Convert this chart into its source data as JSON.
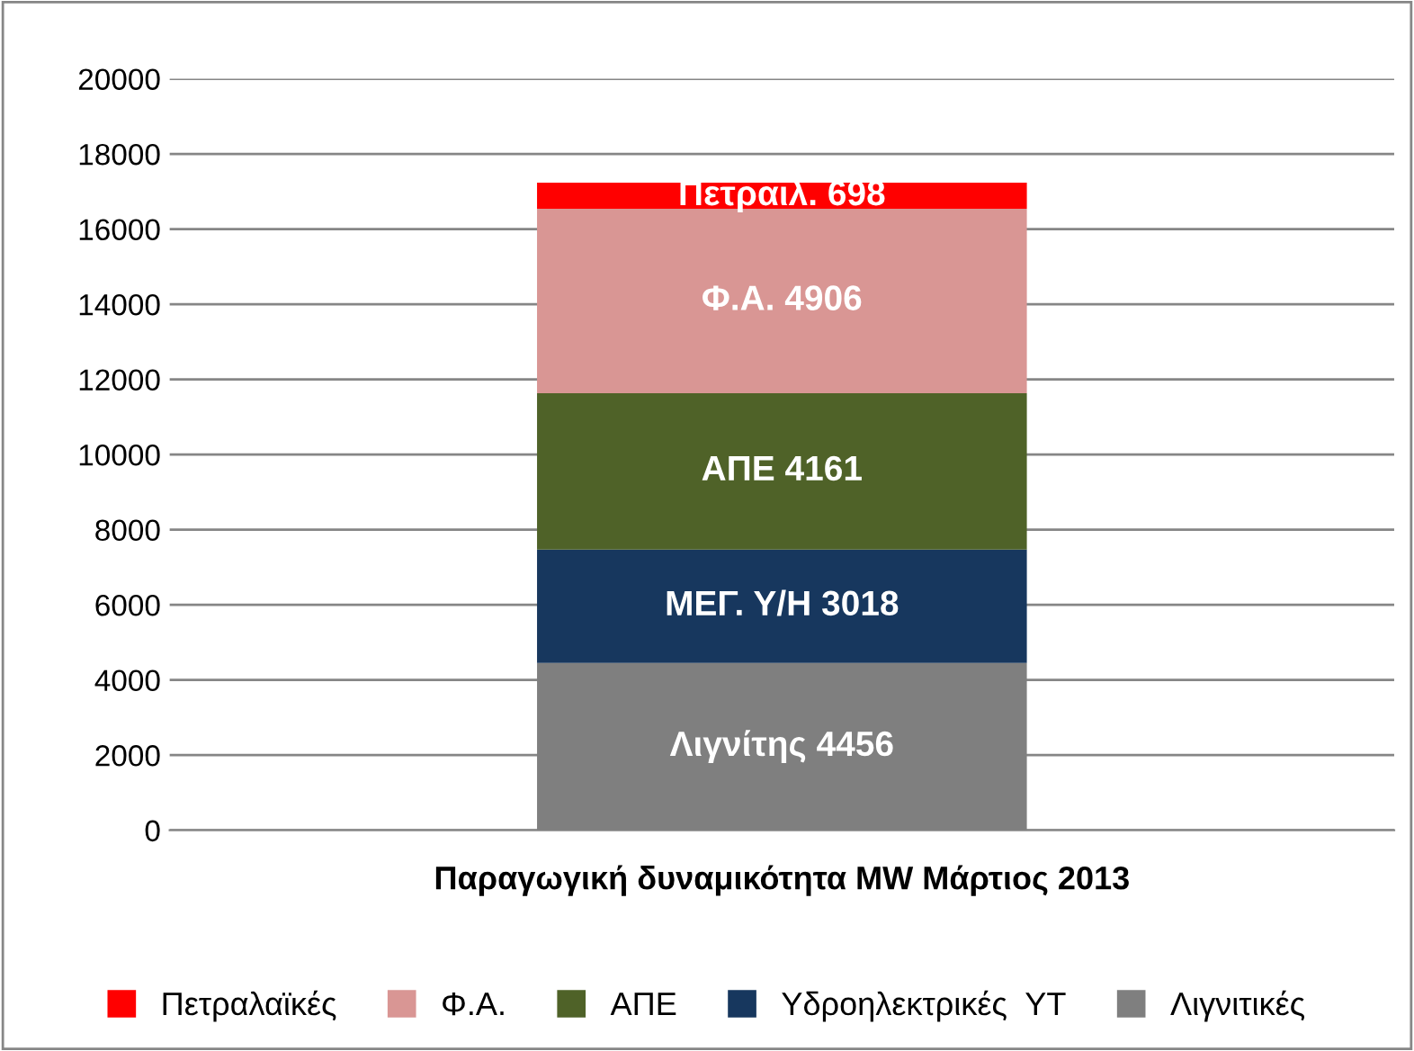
{
  "chart_data": {
    "type": "bar",
    "stacked": true,
    "categories": [
      "Παραγωγική δυναμικότητα MW Μάρτιος 2013"
    ],
    "series": [
      {
        "name": "Λιγνιτικές",
        "color": "#7f7f7f",
        "values": [
          4456
        ],
        "value_labels": [
          "Λιγνίτης 4456"
        ]
      },
      {
        "name": "Υδροηλεκτρικές  ΥΤ",
        "color": "#17375e",
        "values": [
          3018
        ],
        "value_labels": [
          "ΜΕΓ. Υ/Η 3018"
        ]
      },
      {
        "name": "ΑΠΕ",
        "color": "#4f6228",
        "values": [
          4161
        ],
        "value_labels": [
          "ΑΠΕ 4161"
        ]
      },
      {
        "name": "Φ.Α.",
        "color": "#d99694",
        "values": [
          4906
        ],
        "value_labels": [
          "Φ.Α. 4906"
        ]
      },
      {
        "name": "Πετραλαϊκές",
        "color": "#ff0000",
        "values": [
          698
        ],
        "value_labels": [
          "Πετραιλ. 698"
        ]
      }
    ],
    "ylim": [
      0,
      20000
    ],
    "yticks": [
      0,
      2000,
      4000,
      6000,
      8000,
      10000,
      12000,
      14000,
      16000,
      18000,
      20000
    ],
    "grid": "y",
    "legend": "bottom"
  }
}
